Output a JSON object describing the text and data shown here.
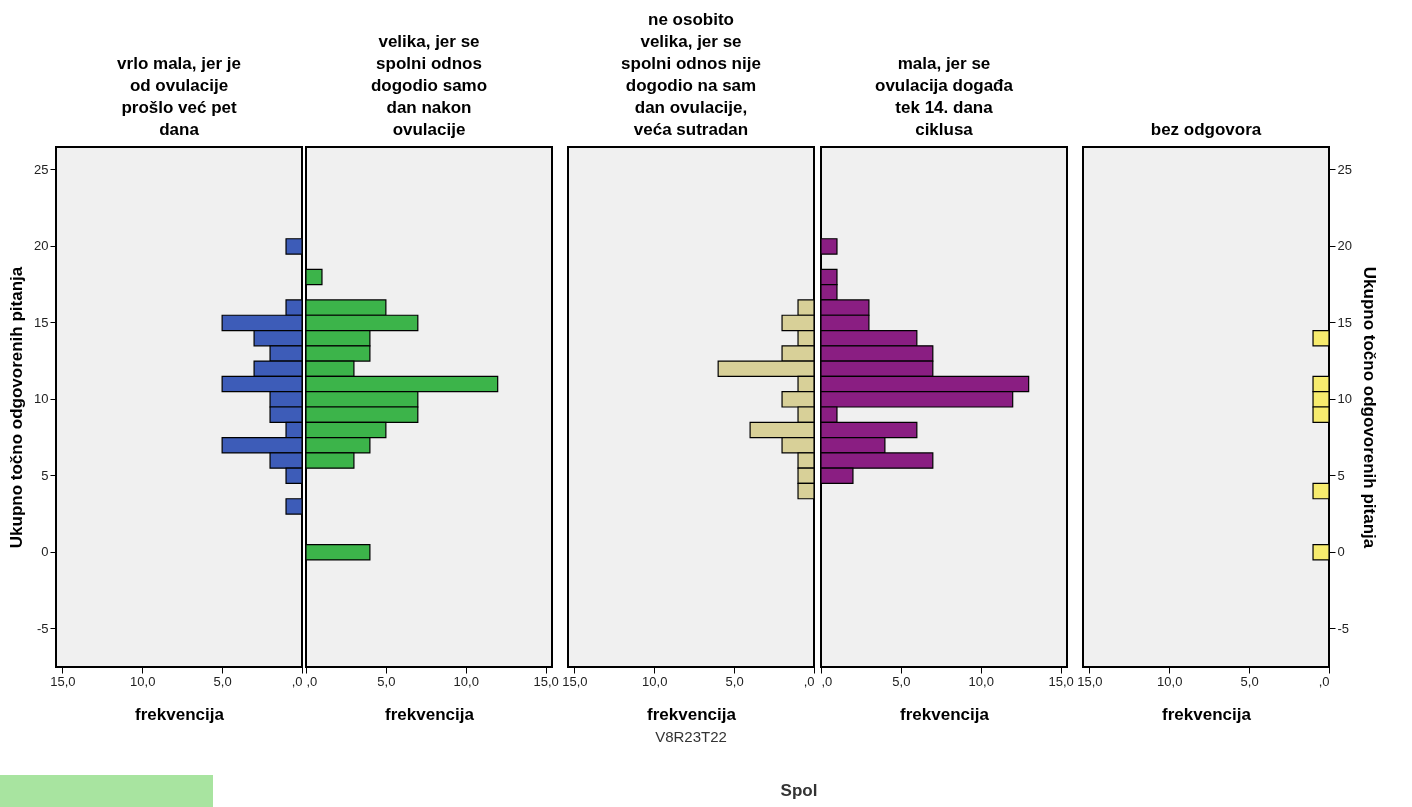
{
  "chart_data": [
    {
      "type": "bar",
      "orientation": "horizontal",
      "title": "vrlo mala, jer je\nod ovulacije\nprošlo već pet\ndana",
      "xlabel": "frekvencija",
      "ylabel": "Ukupno točno odgovorenih pitanja",
      "color": "#3d5cb8",
      "categories": [
        null,
        "25",
        null,
        null,
        null,
        null,
        "20",
        null,
        null,
        null,
        null,
        "15",
        null,
        null,
        null,
        null,
        "10",
        null,
        null,
        null,
        null,
        "5",
        null,
        null,
        null,
        null,
        "0",
        null,
        null,
        null,
        null,
        "-5",
        null,
        null
      ],
      "values": [
        null,
        null,
        null,
        null,
        null,
        null,
        1,
        null,
        null,
        null,
        1,
        5,
        3,
        2,
        3,
        5,
        2,
        2,
        1,
        5,
        2,
        1,
        null,
        1,
        null,
        null,
        null,
        null,
        null,
        null,
        null,
        null,
        null,
        null
      ],
      "xlim": [
        15.4,
        0
      ],
      "xticks": [
        {
          "value": 15,
          "label": "15,0"
        },
        {
          "value": 10,
          "label": "10,0"
        },
        {
          "value": 5,
          "label": "5,0"
        },
        {
          "value": 0,
          "label": ",0"
        }
      ],
      "grid": false
    },
    {
      "type": "bar",
      "orientation": "horizontal",
      "title": "velika, jer se\nspolni odnos\ndogodio samo\ndan nakon\novulacije",
      "xlabel": "frekvencija",
      "color": "#3cb44a",
      "categories": [
        null,
        "25",
        null,
        null,
        null,
        null,
        "20",
        null,
        null,
        null,
        null,
        "15",
        null,
        null,
        null,
        null,
        "10",
        null,
        null,
        null,
        null,
        "5",
        null,
        null,
        null,
        null,
        "0",
        null,
        null,
        null,
        null,
        "-5",
        null,
        null
      ],
      "values": [
        null,
        null,
        null,
        null,
        null,
        null,
        null,
        null,
        1,
        null,
        5,
        7,
        4,
        4,
        3,
        12,
        7,
        7,
        5,
        4,
        3,
        null,
        null,
        null,
        null,
        null,
        4,
        null,
        null,
        null,
        null,
        null,
        null,
        null
      ],
      "xlim": [
        0,
        15.4
      ],
      "xticks": [
        {
          "value": 0,
          "label": ",0"
        },
        {
          "value": 5,
          "label": "5,0"
        },
        {
          "value": 10,
          "label": "10,0"
        },
        {
          "value": 15,
          "label": "15,0"
        }
      ],
      "tick_labels": "x",
      "grid": false
    },
    {
      "type": "bar",
      "orientation": "horizontal",
      "title": "ne osobito\nvelika, jer se\nspolni odnos nije\ndogodio na sam\ndan ovulacije,\nveća sutradan",
      "xlabel": "frekvencija",
      "color": "#d8d098",
      "categories": [
        null,
        "25",
        null,
        null,
        null,
        null,
        "20",
        null,
        null,
        null,
        null,
        "15",
        null,
        null,
        null,
        null,
        "10",
        null,
        null,
        null,
        null,
        "5",
        null,
        null,
        null,
        null,
        "0",
        null,
        null,
        null,
        null,
        "-5",
        null,
        null
      ],
      "values": [
        null,
        null,
        null,
        null,
        null,
        null,
        null,
        null,
        null,
        null,
        1,
        2,
        1,
        2,
        6,
        1,
        2,
        1,
        4,
        2,
        1,
        1,
        1,
        null,
        null,
        null,
        null,
        null,
        null,
        null,
        null,
        null,
        null,
        null
      ],
      "xlim": [
        15.4,
        0
      ],
      "xticks": [
        {
          "value": 15,
          "label": "15,0"
        },
        {
          "value": 10,
          "label": "10,0"
        },
        {
          "value": 5,
          "label": "5,0"
        },
        {
          "value": 0,
          "label": ",0"
        }
      ],
      "tick_labels": "x",
      "grid": false,
      "annotations": [
        "V8R23T22",
        "Spol"
      ]
    },
    {
      "type": "bar",
      "orientation": "horizontal",
      "title": "mala, jer se\novulacija događa\ntek 14. dana\nciklusa",
      "xlabel": "frekvencija",
      "color": "#8a1e82",
      "categories": [
        null,
        "25",
        null,
        null,
        null,
        null,
        "20",
        null,
        null,
        null,
        null,
        "15",
        null,
        null,
        null,
        null,
        "10",
        null,
        null,
        null,
        null,
        "5",
        null,
        null,
        null,
        null,
        "0",
        null,
        null,
        null,
        null,
        "-5",
        null,
        null
      ],
      "values": [
        null,
        null,
        null,
        null,
        null,
        null,
        1,
        null,
        1,
        1,
        3,
        3,
        6,
        7,
        7,
        13,
        12,
        1,
        6,
        4,
        7,
        2,
        null,
        null,
        null,
        null,
        null,
        null,
        null,
        null,
        null,
        null,
        null,
        null
      ],
      "xlim": [
        0,
        15.4
      ],
      "xticks": [
        {
          "value": 0,
          "label": ",0"
        },
        {
          "value": 5,
          "label": "5,0"
        },
        {
          "value": 10,
          "label": "10,0"
        },
        {
          "value": 15,
          "label": "15,0"
        }
      ],
      "tick_labels": "x",
      "grid": false
    },
    {
      "type": "bar",
      "orientation": "horizontal",
      "title": "bez odgovora",
      "xlabel": "frekvencija",
      "y2label": "Ukupno točno odgovorenih pitanja",
      "categories": [
        null,
        "25",
        null,
        null,
        null,
        null,
        "20",
        null,
        null,
        null,
        null,
        "15",
        null,
        null,
        null,
        null,
        "10",
        null,
        null,
        null,
        null,
        "5",
        null,
        null,
        null,
        null,
        "0",
        null,
        null,
        null,
        null,
        "-5",
        null,
        null
      ],
      "series": [
        {
          "axis": "y2",
          "color": "#f7ec6e",
          "values": [
            null,
            null,
            null,
            null,
            null,
            null,
            null,
            null,
            null,
            null,
            null,
            null,
            1,
            null,
            null,
            1,
            1,
            1,
            null,
            null,
            null,
            null,
            1,
            null,
            null,
            null,
            1,
            null,
            null,
            null,
            null,
            null,
            null,
            null
          ]
        }
      ],
      "xlim": [
        15.4,
        0
      ],
      "xticks": [
        {
          "value": 15,
          "label": "15,0"
        },
        {
          "value": 10,
          "label": "10,0"
        },
        {
          "value": 5,
          "label": "5,0"
        },
        {
          "value": 0,
          "label": ",0"
        }
      ],
      "grid": false
    }
  ]
}
